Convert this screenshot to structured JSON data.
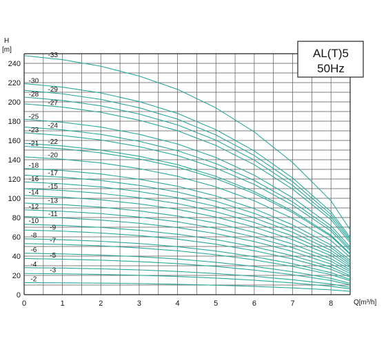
{
  "chart_data": {
    "type": "line",
    "title": "AL(T)5",
    "subtitle": "50Hz",
    "ylabel": "H",
    "yunit": "[m]",
    "xlabel": "Q[m³/h]",
    "xlim": [
      0,
      8.5
    ],
    "ylim": [
      0,
      250
    ],
    "x_ticks": [
      "0",
      "1",
      "2",
      "3",
      "4",
      "5",
      "6",
      "7",
      "8"
    ],
    "y_ticks": [
      "0",
      "20",
      "40",
      "60",
      "80",
      "100",
      "120",
      "140",
      "160",
      "180",
      "200",
      "220",
      "240"
    ],
    "grid": true,
    "curve_color": "#2aa79b",
    "x": [
      0,
      1,
      2,
      3,
      4,
      5,
      6,
      7,
      8,
      8.5
    ],
    "series": [
      {
        "name": "-2",
        "label_x": 0.25,
        "values": [
          12.5,
          12.3,
          12.0,
          11.5,
          10.8,
          9.8,
          8.6,
          7.0,
          5.0,
          3.5
        ]
      },
      {
        "name": "-3",
        "label_x": 0.75,
        "values": [
          22,
          21.6,
          21.0,
          20.1,
          18.9,
          17.2,
          15.0,
          12.2,
          8.7,
          6.0
        ]
      },
      {
        "name": "-4",
        "label_x": 0.25,
        "values": [
          28,
          27.6,
          26.8,
          25.7,
          24.1,
          21.9,
          19.1,
          15.5,
          11.0,
          7.6
        ]
      },
      {
        "name": "-5",
        "label_x": 0.75,
        "values": [
          37.5,
          36.8,
          35.8,
          34.3,
          32.2,
          29.3,
          25.5,
          20.7,
          14.7,
          10.2
        ]
      },
      {
        "name": "-6",
        "label_x": 0.25,
        "values": [
          43,
          42.3,
          41.1,
          39.4,
          37.0,
          33.6,
          29.3,
          23.8,
          16.9,
          11.7
        ]
      },
      {
        "name": "-7",
        "label_x": 0.75,
        "values": [
          53,
          52.1,
          50.7,
          48.5,
          45.5,
          41.4,
          36.1,
          29.3,
          20.8,
          14.4
        ]
      },
      {
        "name": "-8",
        "label_x": 0.25,
        "values": [
          58,
          57.0,
          55.4,
          53.1,
          49.8,
          45.3,
          39.4,
          32.1,
          22.8,
          15.8
        ]
      },
      {
        "name": "-9",
        "label_x": 0.75,
        "values": [
          67,
          65.9,
          64.0,
          61.3,
          57.6,
          52.4,
          45.6,
          37.0,
          26.3,
          18.2
        ]
      },
      {
        "name": "-10",
        "label_x": 0.25,
        "values": [
          73,
          71.8,
          69.8,
          66.8,
          62.7,
          57.1,
          49.7,
          40.4,
          28.7,
          19.8
        ]
      },
      {
        "name": "-11",
        "label_x": 0.75,
        "values": [
          81,
          79.6,
          77.4,
          74.1,
          69.6,
          63.3,
          55.1,
          44.8,
          31.8,
          22.0
        ]
      },
      {
        "name": "-12",
        "label_x": 0.25,
        "values": [
          88,
          86.5,
          84.1,
          80.5,
          75.6,
          68.8,
          59.9,
          48.7,
          34.6,
          23.9
        ]
      },
      {
        "name": "-13",
        "label_x": 0.75,
        "values": [
          95,
          93.4,
          90.8,
          86.9,
          81.6,
          74.3,
          64.7,
          52.5,
          37.3,
          25.8
        ]
      },
      {
        "name": "-14",
        "label_x": 0.25,
        "values": [
          103,
          101.2,
          98.4,
          94.2,
          88.5,
          80.5,
          70.1,
          57.0,
          40.5,
          28.0
        ]
      },
      {
        "name": "-15",
        "label_x": 0.75,
        "values": [
          110,
          108.1,
          105.1,
          100.6,
          94.5,
          86.0,
          74.9,
          60.8,
          43.2,
          29.9
        ]
      },
      {
        "name": "-16",
        "label_x": 0.25,
        "values": [
          117,
          115.0,
          111.8,
          107.0,
          100.5,
          91.5,
          79.7,
          64.7,
          46.0,
          31.8
        ]
      },
      {
        "name": "-17",
        "label_x": 0.75,
        "values": [
          124,
          121.9,
          118.5,
          113.4,
          106.5,
          96.9,
          84.4,
          68.6,
          48.7,
          33.7
        ]
      },
      {
        "name": "-18",
        "label_x": 0.25,
        "values": [
          131,
          128.8,
          125.2,
          119.8,
          112.5,
          102.4,
          89.2,
          72.4,
          51.5,
          35.6
        ]
      },
      {
        "name": "-20",
        "label_x": 0.75,
        "values": [
          143,
          140.5,
          136.7,
          130.8,
          122.8,
          111.8,
          97.4,
          79.1,
          56.2,
          38.8
        ]
      },
      {
        "name": "-21",
        "label_x": 0.25,
        "values": [
          154,
          151.4,
          147.1,
          140.8,
          132.3,
          120.4,
          104.9,
          85.2,
          60.5,
          41.8
        ]
      },
      {
        "name": "-22",
        "label_x": 0.75,
        "values": [
          157,
          154.3,
          150.0,
          143.6,
          134.9,
          122.7,
          106.9,
          86.8,
          61.7,
          42.6
        ]
      },
      {
        "name": "-23",
        "label_x": 0.25,
        "values": [
          168,
          165.1,
          160.5,
          153.6,
          144.3,
          131.3,
          114.4,
          92.9,
          66.0,
          45.6
        ]
      },
      {
        "name": "-24",
        "label_x": 0.75,
        "values": [
          174,
          171.0,
          166.3,
          159.1,
          149.4,
          136.0,
          118.5,
          96.2,
          68.4,
          47.3
        ]
      },
      {
        "name": "-25",
        "label_x": 0.25,
        "values": [
          182,
          178.9,
          173.9,
          166.4,
          156.3,
          142.3,
          123.9,
          100.6,
          71.5,
          49.4
        ]
      },
      {
        "name": "-27",
        "label_x": 0.75,
        "values": [
          198,
          194.6,
          189.2,
          181.0,
          170.1,
          154.8,
          134.8,
          109.5,
          77.8,
          53.8
        ]
      },
      {
        "name": "-28",
        "label_x": 0.25,
        "values": [
          205,
          201.5,
          195.9,
          187.4,
          176.1,
          160.3,
          139.6,
          113.4,
          80.5,
          55.7
        ]
      },
      {
        "name": "-29",
        "label_x": 0.75,
        "values": [
          212,
          208.4,
          202.6,
          193.9,
          182.1,
          165.7,
          144.4,
          117.2,
          83.3,
          57.6
        ]
      },
      {
        "name": "-30",
        "label_x": 0.25,
        "values": [
          219,
          215.3,
          209.3,
          200.3,
          188.1,
          171.2,
          149.1,
          121.1,
          86.0,
          59.5
        ]
      },
      {
        "name": "-33",
        "label_x": 0.75,
        "values": [
          248,
          243.8,
          237.0,
          226.8,
          213.0,
          193.8,
          168.8,
          137.1,
          97.4,
          67.3
        ]
      }
    ]
  }
}
